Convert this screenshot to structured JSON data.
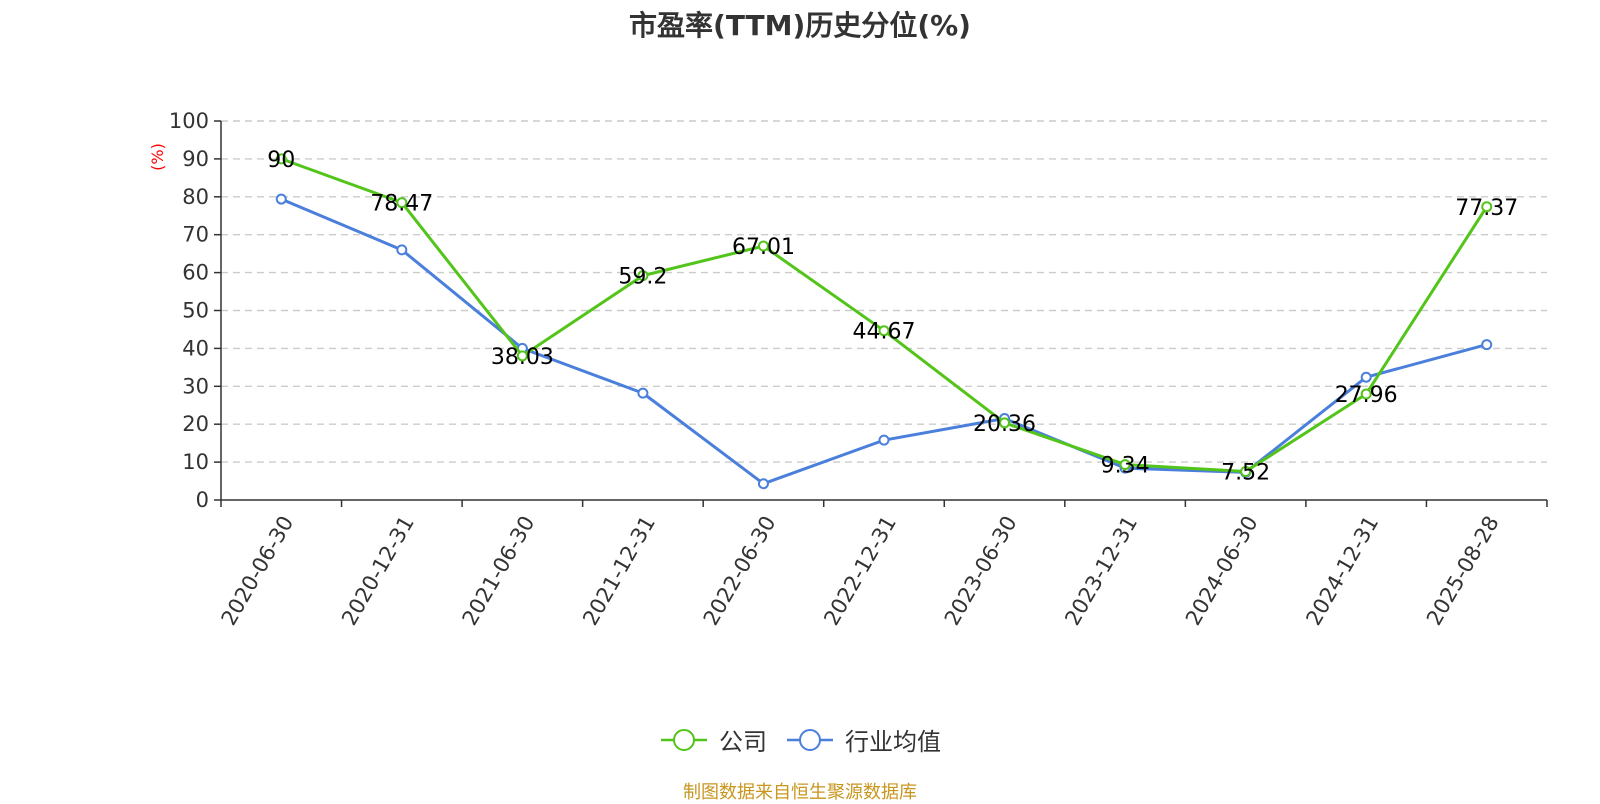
{
  "chart_data": {
    "type": "line",
    "title": "市盈率(TTM)历史分位(%)",
    "ylabel": "(%)",
    "ylim": [
      0,
      100
    ],
    "yticks": [
      0,
      10,
      20,
      30,
      40,
      50,
      60,
      70,
      80,
      90,
      100
    ],
    "categories": [
      "2020-06-30",
      "2020-12-31",
      "2021-06-30",
      "2021-12-31",
      "2022-06-30",
      "2022-12-31",
      "2023-06-30",
      "2023-12-31",
      "2024-06-30",
      "2024-12-31",
      "2025-08-28"
    ],
    "series": [
      {
        "name": "公司",
        "color": "#52c41a",
        "values": [
          90,
          78.47,
          38.03,
          59.2,
          67.01,
          44.67,
          20.36,
          9.34,
          7.52,
          27.96,
          77.37
        ],
        "show_labels": true
      },
      {
        "name": "行业均值",
        "color": "#4a7fdb",
        "values": [
          79.4,
          66,
          40,
          28.2,
          4.3,
          15.8,
          21.5,
          8.4,
          7.3,
          32.4,
          41
        ],
        "show_labels": false
      }
    ],
    "grid": true,
    "legend_position": "bottom-center"
  },
  "footer": {
    "source": "制图数据来自恒生聚源数据库",
    "source_color": "#c8961e"
  },
  "colors": {
    "ylabel": "#ff0000",
    "axis": "#333333",
    "grid": "#cccccc"
  }
}
